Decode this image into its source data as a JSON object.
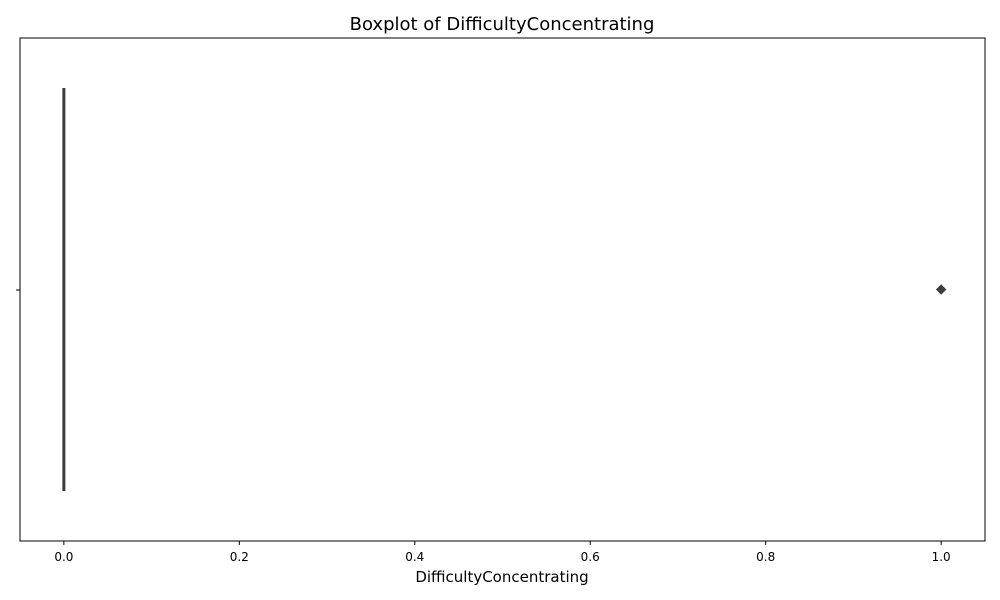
{
  "chart_data": {
    "type": "boxplot",
    "title": "Boxplot of DifficultyConcentrating",
    "xlabel": "DifficultyConcentrating",
    "ylabel": "",
    "orientation": "horizontal",
    "xlim": [
      -0.05,
      1.05
    ],
    "xticks": [
      0.0,
      0.2,
      0.4,
      0.6,
      0.8,
      1.0
    ],
    "xtick_labels": [
      "0.0",
      "0.2",
      "0.4",
      "0.6",
      "0.8",
      "1.0"
    ],
    "grid": false,
    "box": {
      "min": 0,
      "q1": 0,
      "median": 0,
      "q3": 0,
      "max": 0,
      "outliers": [
        1
      ]
    },
    "colors": {
      "box": "#3d3d3d",
      "outlier": "#3d3d3d",
      "axis": "#000000"
    }
  }
}
